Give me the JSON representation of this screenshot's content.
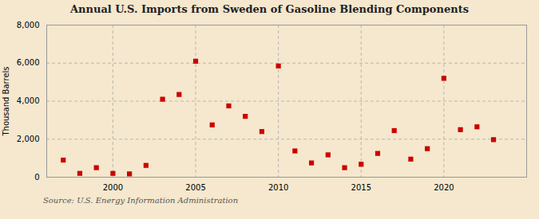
{
  "chart_data": {
    "type": "scatter",
    "title": "Annual U.S. Imports from Sweden of Gasoline Blending Components",
    "ylabel": "Thousand Barrels",
    "source": "Source: U.S. Energy Information Administration",
    "x": [
      1997,
      1998,
      1999,
      2000,
      2001,
      2002,
      2003,
      2004,
      2005,
      2006,
      2007,
      2008,
      2009,
      2010,
      2011,
      2012,
      2013,
      2014,
      2015,
      2016,
      2017,
      2018,
      2019,
      2020,
      2021,
      2022,
      2023
    ],
    "values": [
      900,
      200,
      500,
      200,
      175,
      620,
      4100,
      4350,
      6100,
      2750,
      3750,
      3200,
      2400,
      5850,
      1380,
      750,
      1175,
      500,
      680,
      1250,
      2450,
      950,
      1500,
      5200,
      2500,
      2650,
      1975
    ],
    "color": "#cc0000",
    "marker": "square",
    "xlim": [
      1996,
      2025
    ],
    "ylim": [
      0,
      8000
    ],
    "xticks": [
      2000,
      2005,
      2010,
      2015,
      2020
    ],
    "yticks": [
      0,
      {
        "value": 2000,
        "label": "2,000"
      },
      {
        "value": 4000,
        "label": "4,000"
      },
      {
        "value": 6000,
        "label": "6,000"
      },
      {
        "value": 8000,
        "label": "8,000"
      }
    ],
    "grid": true
  }
}
